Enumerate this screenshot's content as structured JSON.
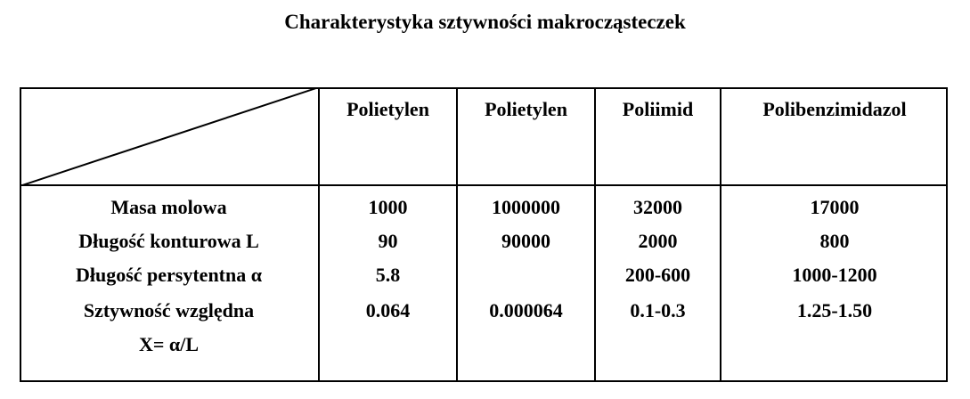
{
  "title": "Charakterystyka sztywności makrocząsteczek",
  "table": {
    "columns": [
      "Polietylen",
      "Polietylen",
      "Poliimid",
      "Polibenzimidazol"
    ],
    "rows": [
      {
        "label": "Masa molowa",
        "values": [
          "1000",
          "1000000",
          "32000",
          "17000"
        ]
      },
      {
        "label": "Długość konturowa L",
        "values": [
          "90",
          "90000",
          "2000",
          "800"
        ]
      },
      {
        "label": "Długość persytentna α",
        "values": [
          "5.8",
          "",
          "200-600",
          "1000-1200"
        ]
      },
      {
        "label": "Sztywność względna",
        "label_line2": "X= α/L",
        "values": [
          "0.064",
          "0.000064",
          "0.1-0.3",
          "1.25-1.50"
        ]
      }
    ]
  }
}
